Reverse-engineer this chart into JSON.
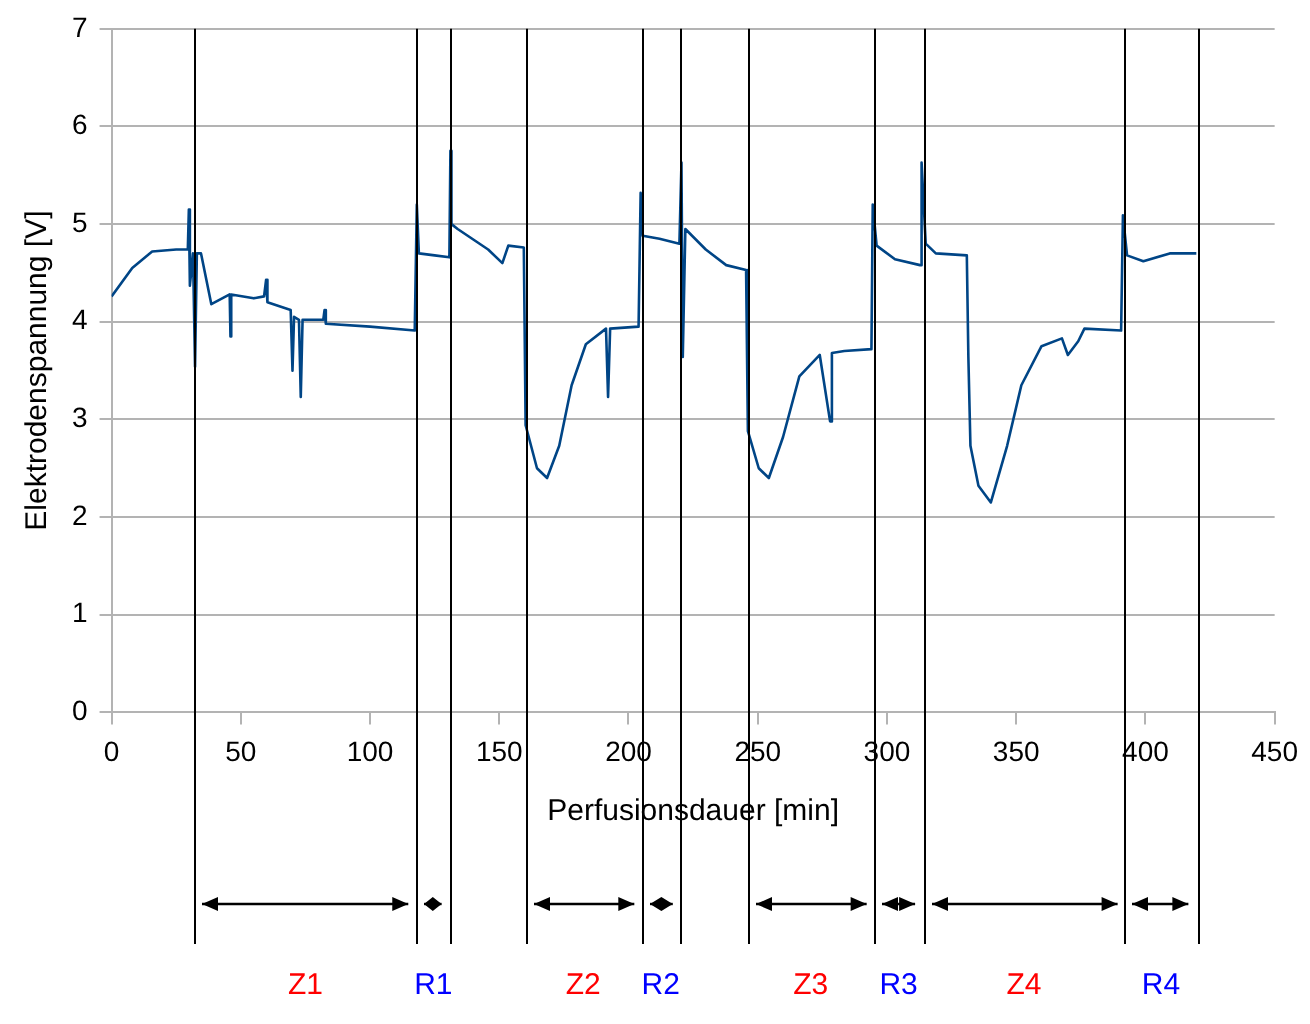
{
  "chart_data": {
    "type": "line",
    "xlabel": "Perfusionsdauer [min]",
    "ylabel": "Elektrodenspannung [V]",
    "xlim": [
      0,
      450
    ],
    "xticks": [
      0,
      50,
      100,
      150,
      200,
      250,
      300,
      350,
      400,
      450
    ],
    "ylim": [
      0,
      7
    ],
    "yticks": [
      0,
      1,
      2,
      3,
      4,
      5,
      6,
      7
    ],
    "grid": "y",
    "legend": false,
    "marker": "none",
    "line_style": "solid",
    "series": [
      {
        "color": "#004586",
        "x": [
          0,
          8,
          15.7,
          25,
          29.5,
          29.9,
          30.3,
          31.5,
          32.3,
          33,
          34.6,
          38.6,
          45.7,
          46,
          46.3,
          55,
          59,
          59.8,
          60.3,
          69.3,
          70,
          70.6,
          72.5,
          73.2,
          73.9,
          81.9,
          82.4,
          82.9,
          100,
          117.3,
          118.1,
          118.9,
          125,
          130.7,
          131.1,
          131.5,
          133.9,
          145.7,
          151.2,
          153.5,
          159.5,
          160.2,
          164.6,
          168.5,
          173.2,
          178,
          183.5,
          191.3,
          192.1,
          192.9,
          203.9,
          204.7,
          205.5,
          212,
          219.7,
          220.5,
          221,
          222,
          229.9,
          237.8,
          245.5,
          246.2,
          250.4,
          254.3,
          259.8,
          266.1,
          274,
          278,
          278.7,
          283.5,
          294,
          294.5,
          296,
          303.1,
          312.8,
          313.4,
          315,
          318.9,
          330.9,
          331.5,
          332.3,
          335.4,
          340.2,
          346.5,
          352,
          359.8,
          367.7,
          370,
          374,
          376.4,
          390.6,
          391.3,
          392.9,
          399.2,
          409.4,
          419.7
        ],
        "values": [
          4.26,
          4.55,
          4.72,
          4.74,
          4.74,
          5.15,
          4.37,
          4.7,
          3.54,
          4.7,
          4.7,
          4.18,
          4.28,
          3.85,
          4.28,
          4.24,
          4.26,
          4.43,
          4.2,
          4.12,
          3.5,
          4.05,
          4.02,
          3.23,
          4.02,
          4.02,
          4.12,
          3.98,
          3.95,
          3.91,
          5.2,
          4.7,
          4.68,
          4.66,
          5.75,
          5.0,
          4.95,
          4.74,
          4.6,
          4.78,
          4.76,
          2.94,
          2.5,
          2.4,
          2.73,
          3.35,
          3.77,
          3.93,
          3.23,
          3.93,
          3.95,
          5.32,
          4.88,
          4.85,
          4.8,
          5.63,
          3.64,
          4.95,
          4.74,
          4.58,
          4.53,
          2.88,
          2.5,
          2.4,
          2.82,
          3.44,
          3.66,
          2.98,
          3.68,
          3.7,
          3.72,
          5.2,
          4.78,
          4.64,
          4.58,
          5.63,
          4.8,
          4.7,
          4.68,
          3.64,
          2.73,
          2.32,
          2.15,
          2.73,
          3.35,
          3.75,
          3.83,
          3.66,
          3.8,
          3.93,
          3.91,
          5.09,
          4.68,
          4.62,
          4.7,
          4.7
        ]
      }
    ],
    "ref_lines": [
      {
        "axis": "x",
        "value": 32,
        "color": "#000000"
      },
      {
        "axis": "x",
        "value": 118,
        "color": "#000000"
      },
      {
        "axis": "x",
        "value": 131,
        "color": "#000000"
      },
      {
        "axis": "x",
        "value": 160,
        "color": "#000000"
      },
      {
        "axis": "x",
        "value": 205,
        "color": "#000000"
      },
      {
        "axis": "x",
        "value": 220,
        "color": "#000000"
      },
      {
        "axis": "x",
        "value": 246,
        "color": "#000000"
      },
      {
        "axis": "x",
        "value": 295,
        "color": "#000000"
      },
      {
        "axis": "x",
        "value": 314,
        "color": "#000000"
      },
      {
        "axis": "x",
        "value": 392,
        "color": "#000000"
      },
      {
        "axis": "x",
        "value": 420,
        "color": "#000000"
      }
    ],
    "annotations": [
      "Z1",
      "R1",
      "Z2",
      "R2",
      "Z3",
      "R3",
      "Z4",
      "R4"
    ]
  }
}
